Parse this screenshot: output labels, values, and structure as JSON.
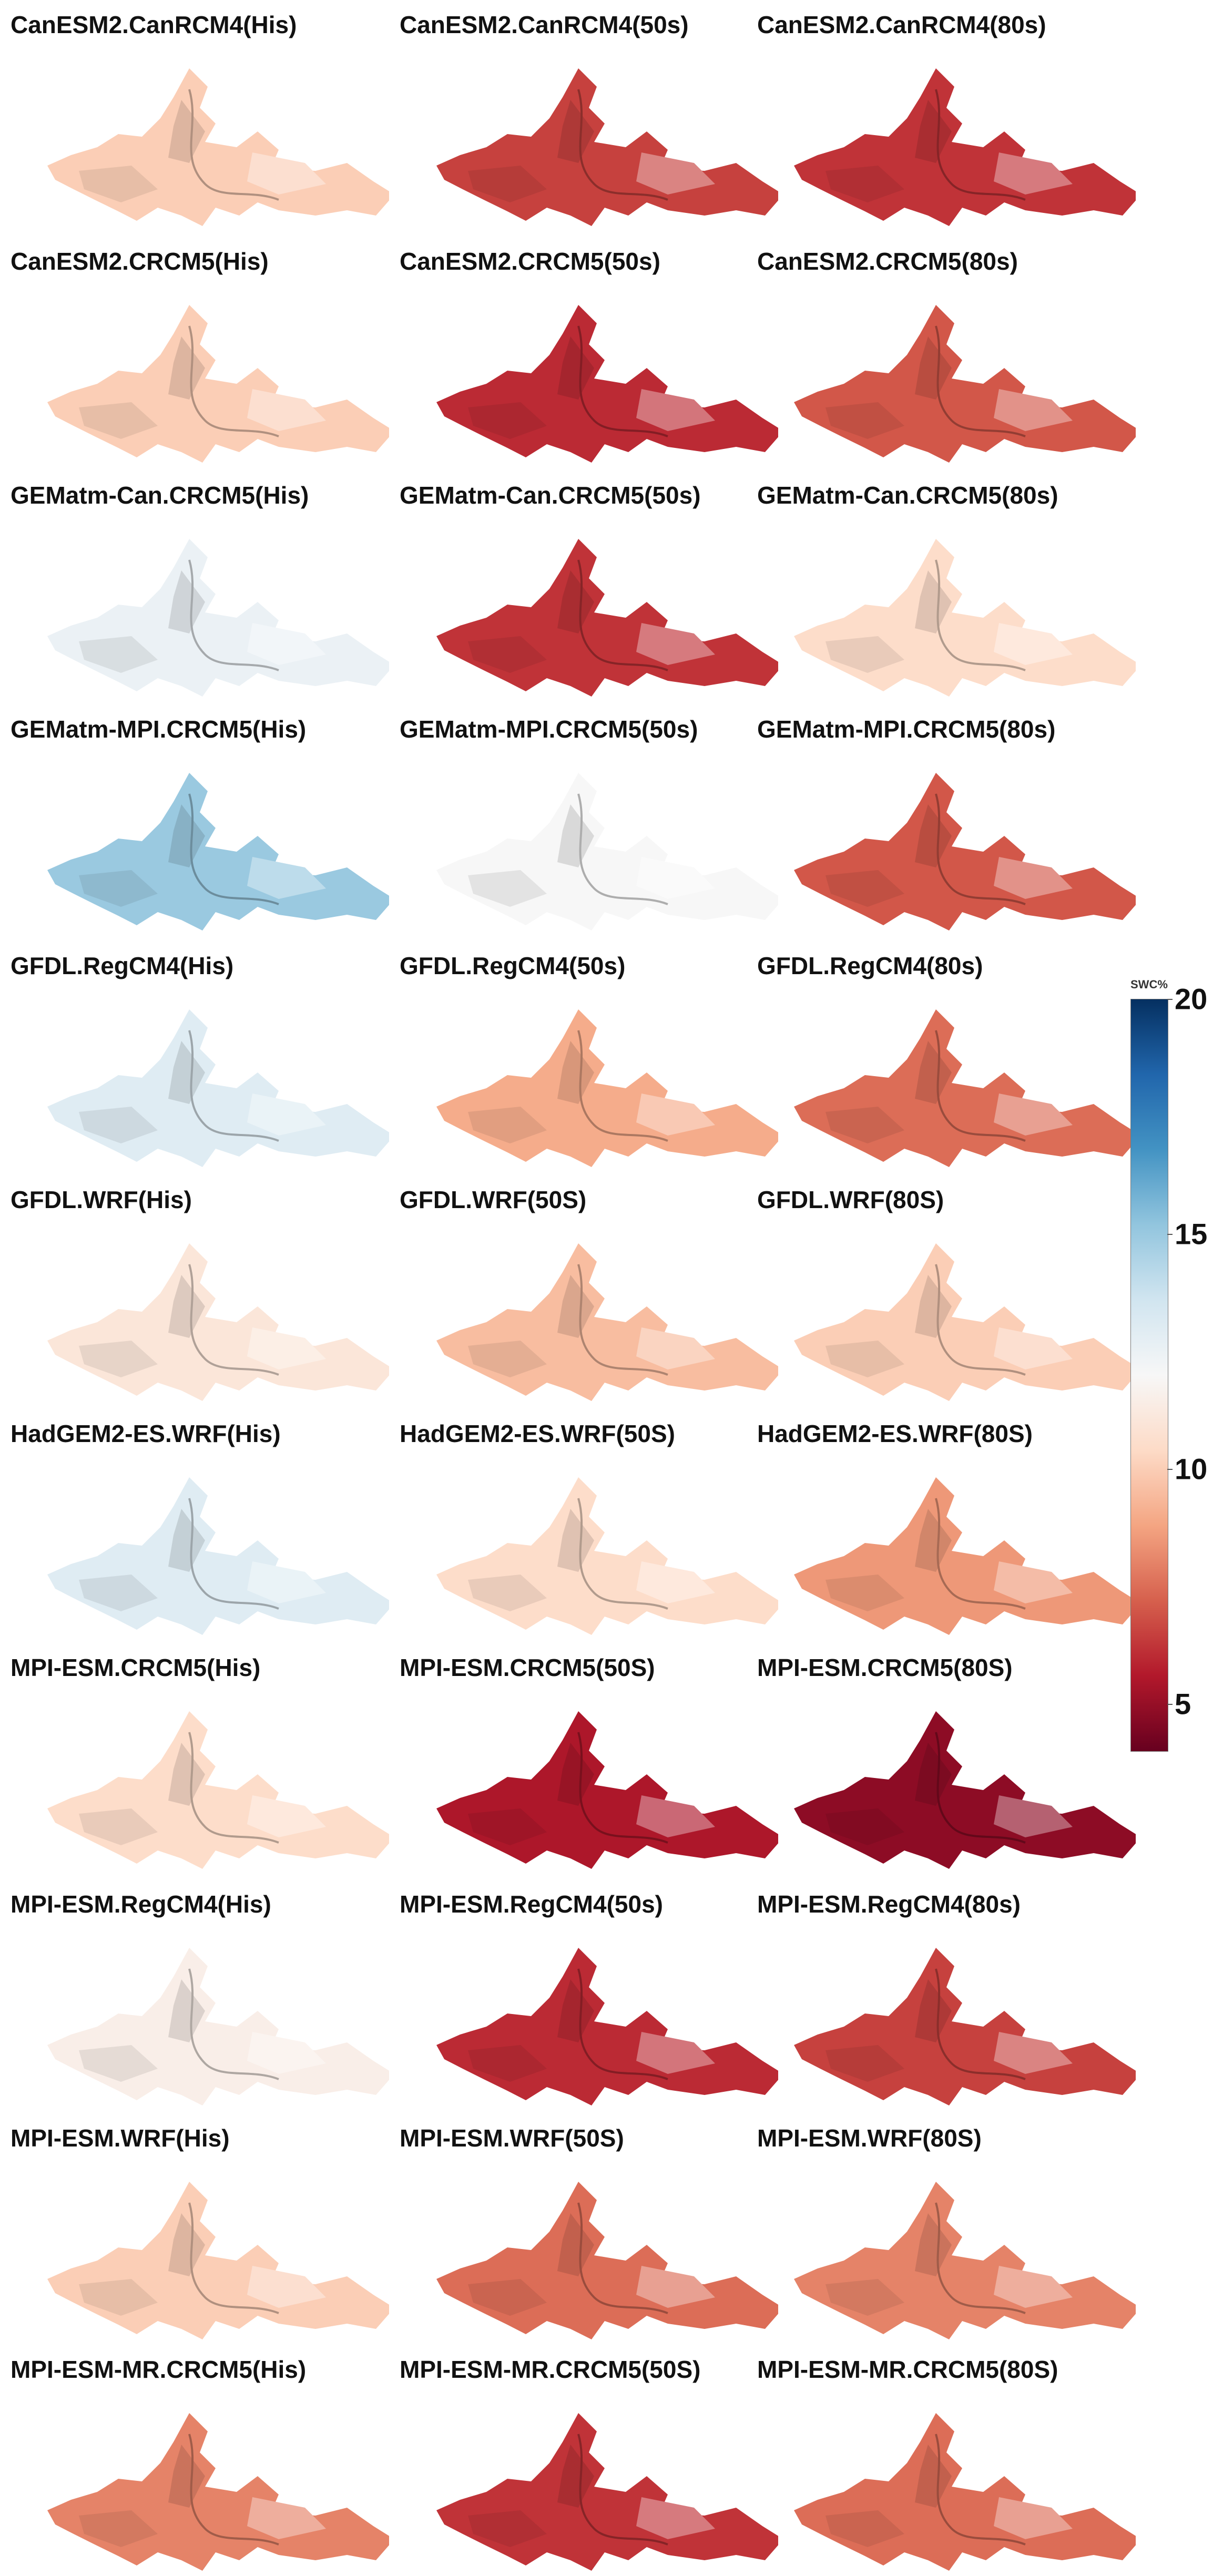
{
  "figure": {
    "variable": "SWC%",
    "colorscale": {
      "min": 4,
      "max": 20,
      "ticks": [
        20,
        15,
        10,
        5
      ],
      "stops": [
        "#67001f",
        "#b2182b",
        "#d6604d",
        "#f4a582",
        "#fddbc7",
        "#f7f7f7",
        "#d1e5f0",
        "#92c5de",
        "#4393c3",
        "#2166ac",
        "#053061"
      ]
    },
    "panels": [
      {
        "title": "CanESM2.CanRCM4(His)",
        "swc": 10.0
      },
      {
        "title": "CanESM2.CanRCM4(50s)",
        "swc": 6.5
      },
      {
        "title": "CanESM2.CanRCM4(80s)",
        "swc": 6.2
      },
      {
        "title": "CanESM2.CRCM5(His)",
        "swc": 10.0
      },
      {
        "title": "CanESM2.CRCM5(50s)",
        "swc": 6.0
      },
      {
        "title": "CanESM2.CRCM5(80s)",
        "swc": 7.0
      },
      {
        "title": "GEMatm-Can.CRCM5(His)",
        "swc": 12.5
      },
      {
        "title": "GEMatm-Can.CRCM5(50s)",
        "swc": 6.2
      },
      {
        "title": "GEMatm-Can.CRCM5(80s)",
        "swc": 10.5
      },
      {
        "title": "GEMatm-MPI.CRCM5(His)",
        "swc": 15.0
      },
      {
        "title": "GEMatm-MPI.CRCM5(50s)",
        "swc": 12.0
      },
      {
        "title": "GEMatm-MPI.CRCM5(80s)",
        "swc": 7.0
      },
      {
        "title": "GFDL.RegCM4(His)",
        "swc": 13.0
      },
      {
        "title": "GFDL.RegCM4(50s)",
        "swc": 9.0
      },
      {
        "title": "GFDL.RegCM4(80s)",
        "swc": 7.5
      },
      {
        "title": "GFDL.WRF(His)",
        "swc": 11.0
      },
      {
        "title": "GFDL.WRF(50S)",
        "swc": 9.5
      },
      {
        "title": "GFDL.WRF(80S)",
        "swc": 10.0
      },
      {
        "title": "HadGEM2-ES.WRF(His)",
        "swc": 13.0
      },
      {
        "title": "HadGEM2-ES.WRF(50S)",
        "swc": 10.5
      },
      {
        "title": "HadGEM2-ES.WRF(80S)",
        "swc": 8.5
      },
      {
        "title": "MPI-ESM.CRCM5(His)",
        "swc": 10.5
      },
      {
        "title": "MPI-ESM.CRCM5(50S)",
        "swc": 5.5
      },
      {
        "title": "MPI-ESM.CRCM5(80S)",
        "swc": 4.8
      },
      {
        "title": "MPI-ESM.RegCM4(His)",
        "swc": 11.5
      },
      {
        "title": "MPI-ESM.RegCM4(50s)",
        "swc": 6.0
      },
      {
        "title": "MPI-ESM.RegCM4(80s)",
        "swc": 6.5
      },
      {
        "title": "MPI-ESM.WRF(His)",
        "swc": 10.0
      },
      {
        "title": "MPI-ESM.WRF(50S)",
        "swc": 7.5
      },
      {
        "title": "MPI-ESM.WRF(80S)",
        "swc": 8.0
      },
      {
        "title": "MPI-ESM-MR.CRCM5(His)",
        "swc": 8.0
      },
      {
        "title": "MPI-ESM-MR.CRCM5(50S)",
        "swc": 6.2
      },
      {
        "title": "MPI-ESM-MR.CRCM5(80S)",
        "swc": 7.5
      }
    ]
  }
}
